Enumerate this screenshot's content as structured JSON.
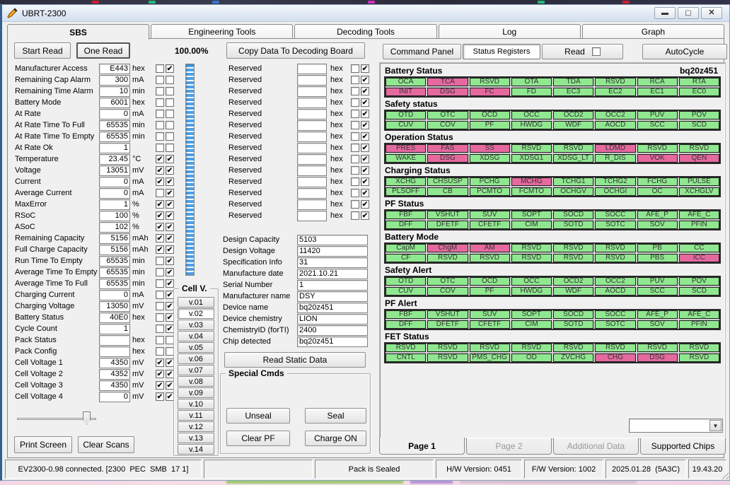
{
  "window": {
    "title": "UBRT-2300"
  },
  "top_tabs": {
    "items": [
      "SBS",
      "Engineering Tools",
      "Decoding Tools",
      "Log",
      "Graph"
    ],
    "active_index": 0
  },
  "toolbar": {
    "start_read": "Start Read",
    "one_read": "One Read",
    "progress": "100.00%",
    "copy_button": "Copy Data To Decoding Board",
    "command_panel": "Command Panel",
    "status_registers": "Status Registers",
    "read_label": "Read",
    "read_checked": false,
    "autocycle": "AutoCycle"
  },
  "params": [
    {
      "label": "Manufacturer Access",
      "value": "E443",
      "unit": "hex",
      "cb1": false,
      "cb2": true
    },
    {
      "label": "Remaining Cap Alarm",
      "value": "300",
      "unit": "mA",
      "cb1": false,
      "cb2": false
    },
    {
      "label": "Remaining Time Alarm",
      "value": "10",
      "unit": "min",
      "cb1": false,
      "cb2": false
    },
    {
      "label": "Battery Mode",
      "value": "6001",
      "unit": "hex",
      "cb1": false,
      "cb2": false
    },
    {
      "label": "At Rate",
      "value": "0",
      "unit": "mA",
      "cb1": false,
      "cb2": false
    },
    {
      "label": "At Rate Time To Full",
      "value": "65535",
      "unit": "min",
      "cb1": false,
      "cb2": false
    },
    {
      "label": "At Rate Time To Empty",
      "value": "65535",
      "unit": "min",
      "cb1": false,
      "cb2": false
    },
    {
      "label": "At Rate Ok",
      "value": "1",
      "unit": "",
      "cb1": false,
      "cb2": false
    },
    {
      "label": "Temperature",
      "value": "23.45",
      "unit": "°C",
      "cb1": true,
      "cb2": true
    },
    {
      "label": "Voltage",
      "value": "13051",
      "unit": "mV",
      "cb1": true,
      "cb2": true
    },
    {
      "label": "Current",
      "value": "0",
      "unit": "mA",
      "cb1": true,
      "cb2": true
    },
    {
      "label": "Average Current",
      "value": "0",
      "unit": "mA",
      "cb1": false,
      "cb2": true
    },
    {
      "label": "MaxError",
      "value": "1",
      "unit": "%",
      "cb1": true,
      "cb2": true
    },
    {
      "label": "RSoC",
      "value": "100",
      "unit": "%",
      "cb1": true,
      "cb2": true
    },
    {
      "label": "ASoC",
      "value": "102",
      "unit": "%",
      "cb1": true,
      "cb2": true
    },
    {
      "label": "Remaining Capacity",
      "value": "5156",
      "unit": "mAh",
      "cb1": true,
      "cb2": true
    },
    {
      "label": "Full Charge Capacity",
      "value": "5156",
      "unit": "mAh",
      "cb1": true,
      "cb2": true
    },
    {
      "label": "Run Time To Empty",
      "value": "65535",
      "unit": "min",
      "cb1": false,
      "cb2": true
    },
    {
      "label": "Average Time To Empty",
      "value": "65535",
      "unit": "min",
      "cb1": false,
      "cb2": true
    },
    {
      "label": "Average Time To Full",
      "value": "65535",
      "unit": "min",
      "cb1": false,
      "cb2": true
    },
    {
      "label": "Charging Current",
      "value": "0",
      "unit": "mA",
      "cb1": false,
      "cb2": true
    },
    {
      "label": "Charging Voltage",
      "value": "13050",
      "unit": "mV",
      "cb1": false,
      "cb2": true
    },
    {
      "label": "Battery Status",
      "value": "40E0",
      "unit": "hex",
      "cb1": false,
      "cb2": true
    },
    {
      "label": "Cycle Count",
      "value": "1",
      "unit": "",
      "cb1": false,
      "cb2": true
    },
    {
      "label": "Pack Status",
      "value": "",
      "unit": "hex",
      "cb1": false,
      "cb2": false
    },
    {
      "label": "Pack Config",
      "value": "",
      "unit": "hex",
      "cb1": false,
      "cb2": false
    },
    {
      "label": "Cell Voltage 1",
      "value": "4350",
      "unit": "mV",
      "cb1": true,
      "cb2": true
    },
    {
      "label": "Cell Voltage 2",
      "value": "4352",
      "unit": "mV",
      "cb1": true,
      "cb2": true
    },
    {
      "label": "Cell Voltage 3",
      "value": "4350",
      "unit": "mV",
      "cb1": true,
      "cb2": true
    },
    {
      "label": "Cell Voltage 4",
      "value": "0",
      "unit": "mV",
      "cb1": true,
      "cb2": true
    }
  ],
  "reserved": {
    "label": "Reserved",
    "unit": "hex",
    "rows": 14,
    "value": "",
    "cb1": false,
    "cb2": true
  },
  "static_fields": [
    {
      "label": "Design Capacity",
      "value": "5103"
    },
    {
      "label": "Design Voltage",
      "value": "11420"
    },
    {
      "label": "Specification Info",
      "value": "31"
    },
    {
      "label": "Manufacture date",
      "value": "2021.10.21"
    },
    {
      "label": "Serial Number",
      "value": "1"
    },
    {
      "label": "Manufacturer name",
      "value": "DSY"
    },
    {
      "label": "Device name",
      "value": "bq20z451"
    },
    {
      "label": "Device chemistry",
      "value": "LION"
    },
    {
      "label": "ChemistryID (forTI)",
      "value": "2400"
    },
    {
      "label": "Chip detected",
      "value": "bq20z451"
    }
  ],
  "cell_v": {
    "title": "Cell V.",
    "buttons": [
      "v.01",
      "v.02",
      "v.03",
      "v.04",
      "v.05",
      "v.06",
      "v.07",
      "v.08",
      "v.09",
      "v.10",
      "v.11",
      "v.12",
      "v.13",
      "v.14"
    ],
    "active": "v.02"
  },
  "actions": {
    "read_static": "Read Static Data",
    "special_title": "Special Cmds",
    "unseal": "Unseal",
    "seal": "Seal",
    "clear_pf": "Clear PF",
    "charge_on": "Charge ON",
    "print_screen": "Print Screen",
    "clear_scans": "Clear Scans"
  },
  "registers": {
    "chip": "bq20z451",
    "sections": [
      {
        "title": "Battery Status",
        "rows": [
          [
            [
              "OCA",
              "g"
            ],
            [
              "TCA",
              "p"
            ],
            [
              "RSVD",
              "g"
            ],
            [
              "OTA",
              "g"
            ],
            [
              "TDA",
              "g"
            ],
            [
              "RSVD",
              "g"
            ],
            [
              "RCA",
              "g"
            ],
            [
              "RTA",
              "g"
            ]
          ],
          [
            [
              "INIT",
              "p"
            ],
            [
              "DSG",
              "p"
            ],
            [
              "FC",
              "p"
            ],
            [
              "FD",
              "g"
            ],
            [
              "EC3",
              "g"
            ],
            [
              "EC2",
              "g"
            ],
            [
              "EC1",
              "g"
            ],
            [
              "EC0",
              "g"
            ]
          ]
        ]
      },
      {
        "title": "Safety status",
        "rows": [
          [
            [
              "OTD",
              "g"
            ],
            [
              "OTC",
              "g"
            ],
            [
              "OCD",
              "g"
            ],
            [
              "OCC",
              "g"
            ],
            [
              "OCD2",
              "g"
            ],
            [
              "OCC2",
              "g"
            ],
            [
              "PUV",
              "g"
            ],
            [
              "POV",
              "g"
            ]
          ],
          [
            [
              "CUV",
              "g"
            ],
            [
              "COV",
              "g"
            ],
            [
              "PF",
              "g"
            ],
            [
              "HWDG",
              "g"
            ],
            [
              "WDF",
              "g"
            ],
            [
              "AOCD",
              "g"
            ],
            [
              "SCC",
              "g"
            ],
            [
              "SCD",
              "g"
            ]
          ]
        ]
      },
      {
        "title": "Operation Status",
        "rows": [
          [
            [
              "PRES",
              "p"
            ],
            [
              "FAS",
              "p"
            ],
            [
              "SS",
              "p"
            ],
            [
              "RSVD",
              "g"
            ],
            [
              "RSVD",
              "g"
            ],
            [
              "LDMD",
              "p"
            ],
            [
              "RSVD",
              "g"
            ],
            [
              "RSVD",
              "g"
            ]
          ],
          [
            [
              "WAKE",
              "g"
            ],
            [
              "DSG",
              "p"
            ],
            [
              "XDSG",
              "g"
            ],
            [
              "XDSG1",
              "g"
            ],
            [
              "XDSG_LT",
              "g"
            ],
            [
              "R_DIS",
              "g"
            ],
            [
              "VOK",
              "p"
            ],
            [
              "QEN",
              "p"
            ]
          ]
        ]
      },
      {
        "title": "Charging Status",
        "rows": [
          [
            [
              "XCHG",
              "g"
            ],
            [
              "CHSUSP",
              "g"
            ],
            [
              "PCHG",
              "g"
            ],
            [
              "MCHG",
              "p"
            ],
            [
              "TCHG1",
              "g"
            ],
            [
              "TCHG2",
              "g"
            ],
            [
              "FCHG",
              "g"
            ],
            [
              "PULSE",
              "g"
            ]
          ],
          [
            [
              "PLSOFF",
              "g"
            ],
            [
              "CB",
              "g"
            ],
            [
              "PCMTO",
              "g"
            ],
            [
              "FCMTO",
              "g"
            ],
            [
              "OCHGV",
              "g"
            ],
            [
              "OCHGI",
              "g"
            ],
            [
              "OC",
              "g"
            ],
            [
              "XCHGLV",
              "g"
            ]
          ]
        ]
      },
      {
        "title": "PF Status",
        "rows": [
          [
            [
              "FBF",
              "g"
            ],
            [
              "VSHUT",
              "g"
            ],
            [
              "SUV",
              "g"
            ],
            [
              "SOPT",
              "g"
            ],
            [
              "SOCD",
              "g"
            ],
            [
              "SOCC",
              "g"
            ],
            [
              "AFE_P",
              "g"
            ],
            [
              "AFE_C",
              "g"
            ]
          ],
          [
            [
              "DFF",
              "g"
            ],
            [
              "DFETF",
              "g"
            ],
            [
              "CFETF",
              "g"
            ],
            [
              "CIM",
              "g"
            ],
            [
              "SOTD",
              "g"
            ],
            [
              "SOTC",
              "g"
            ],
            [
              "SOV",
              "g"
            ],
            [
              "PFIN",
              "g"
            ]
          ]
        ]
      },
      {
        "title": "Battery Mode",
        "rows": [
          [
            [
              "CapM",
              "g"
            ],
            [
              "ChgM",
              "p"
            ],
            [
              "AM",
              "p"
            ],
            [
              "RSVD",
              "g"
            ],
            [
              "RSVD",
              "g"
            ],
            [
              "RSVD",
              "g"
            ],
            [
              "PB",
              "g"
            ],
            [
              "CC",
              "g"
            ]
          ],
          [
            [
              "CF",
              "g"
            ],
            [
              "RSVD",
              "g"
            ],
            [
              "RSVD",
              "g"
            ],
            [
              "RSVD",
              "g"
            ],
            [
              "RSVD",
              "g"
            ],
            [
              "RSVD",
              "g"
            ],
            [
              "PBS",
              "g"
            ],
            [
              "ICC",
              "p"
            ]
          ]
        ]
      },
      {
        "title": "Safety Alert",
        "rows": [
          [
            [
              "OTD",
              "g"
            ],
            [
              "OTC",
              "g"
            ],
            [
              "OCD",
              "g"
            ],
            [
              "OCC",
              "g"
            ],
            [
              "OCD2",
              "g"
            ],
            [
              "OCC2",
              "g"
            ],
            [
              "PUV",
              "g"
            ],
            [
              "POV",
              "g"
            ]
          ],
          [
            [
              "CUV",
              "g"
            ],
            [
              "COV",
              "g"
            ],
            [
              "PF",
              "g"
            ],
            [
              "HWDG",
              "g"
            ],
            [
              "WDF",
              "g"
            ],
            [
              "AOCD",
              "g"
            ],
            [
              "SCC",
              "g"
            ],
            [
              "SCD",
              "g"
            ]
          ]
        ]
      },
      {
        "title": "PF Alert",
        "rows": [
          [
            [
              "FBF",
              "g"
            ],
            [
              "VSHUT",
              "g"
            ],
            [
              "SUV",
              "g"
            ],
            [
              "SOPT",
              "g"
            ],
            [
              "SOCD",
              "g"
            ],
            [
              "SOCC",
              "g"
            ],
            [
              "AFE_P",
              "g"
            ],
            [
              "AFE_C",
              "g"
            ]
          ],
          [
            [
              "DFF",
              "g"
            ],
            [
              "DFETF",
              "g"
            ],
            [
              "CFETF",
              "g"
            ],
            [
              "CIM",
              "g"
            ],
            [
              "SOTD",
              "g"
            ],
            [
              "SOTC",
              "g"
            ],
            [
              "SOV",
              "g"
            ],
            [
              "PFIN",
              "g"
            ]
          ]
        ]
      },
      {
        "title": "FET Status",
        "rows": [
          [
            [
              "RSVD",
              "g"
            ],
            [
              "RSVD",
              "g"
            ],
            [
              "RSVD",
              "g"
            ],
            [
              "RSVD",
              "g"
            ],
            [
              "RSVD",
              "g"
            ],
            [
              "RSVD",
              "g"
            ],
            [
              "RSVD",
              "g"
            ],
            [
              "RSVD",
              "g"
            ]
          ],
          [
            [
              "CNTL",
              "g"
            ],
            [
              "RSVD",
              "g"
            ],
            [
              "PMS_CHG",
              "g"
            ],
            [
              "OD",
              "g"
            ],
            [
              "ZVCHG",
              "g"
            ],
            [
              "CHG",
              "p"
            ],
            [
              "DSG",
              "p"
            ],
            [
              "RSVD",
              "g"
            ]
          ]
        ]
      }
    ]
  },
  "page_tabs": [
    {
      "label": "Page 1",
      "state": "active"
    },
    {
      "label": "Page 2",
      "state": "dim"
    },
    {
      "label": "Additional Data",
      "state": "dim"
    },
    {
      "label": "Supported Chips",
      "state": "normal"
    }
  ],
  "statusbar": {
    "panels": [
      "EV2300-0.98 connected. [2300  PEC  SMB  17 1]",
      "",
      "Pack is Sealed",
      "H/W Version: 0451",
      "F/W Version: 1002",
      "2025.01.28  (5A3C)",
      "19.43.20"
    ]
  },
  "colors": {
    "flag_green": "#8FE88F",
    "flag_pink": "#E5699F"
  }
}
